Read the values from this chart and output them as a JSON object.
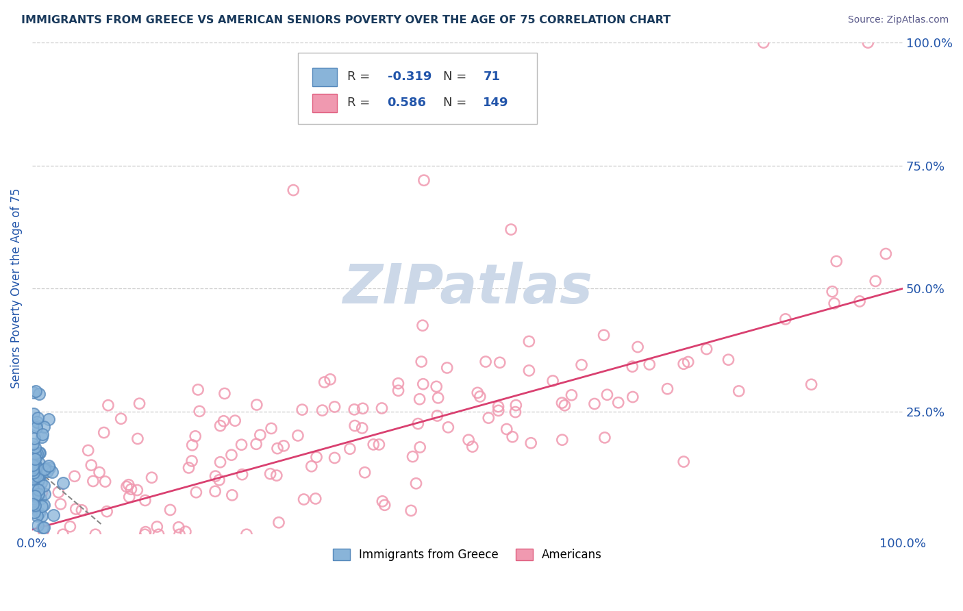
{
  "title": "IMMIGRANTS FROM GREECE VS AMERICAN SENIORS POVERTY OVER THE AGE OF 75 CORRELATION CHART",
  "source": "Source: ZipAtlas.com",
  "ylabel": "Seniors Poverty Over the Age of 75",
  "xlim": [
    0,
    1.0
  ],
  "ylim": [
    0,
    1.0
  ],
  "xticklabels": [
    "0.0%",
    "",
    "",
    "",
    "100.0%"
  ],
  "ytick_labels_right": [
    "100.0%",
    "75.0%",
    "50.0%",
    "25.0%"
  ],
  "ytick_vals_right": [
    1.0,
    0.75,
    0.5,
    0.25
  ],
  "greece_R": -0.319,
  "greece_N": 71,
  "americans_R": 0.586,
  "americans_N": 149,
  "greece_color": "#89b4d9",
  "greece_edge_color": "#5588bb",
  "americans_color": "#f099b0",
  "americans_edge_color": "#e06080",
  "greece_line_color": "#888888",
  "americans_line_color": "#d94070",
  "watermark_color": "#ccd8e8",
  "legend_label_1": "Immigrants from Greece",
  "legend_label_2": "Americans",
  "title_color": "#1a3a5c",
  "source_color": "#5a5a8a",
  "R_label_color": "#333333",
  "R_value_color": "#2255aa",
  "tick_label_color": "#2255aa",
  "axis_label_color": "#2255aa",
  "grid_color": "#cccccc"
}
